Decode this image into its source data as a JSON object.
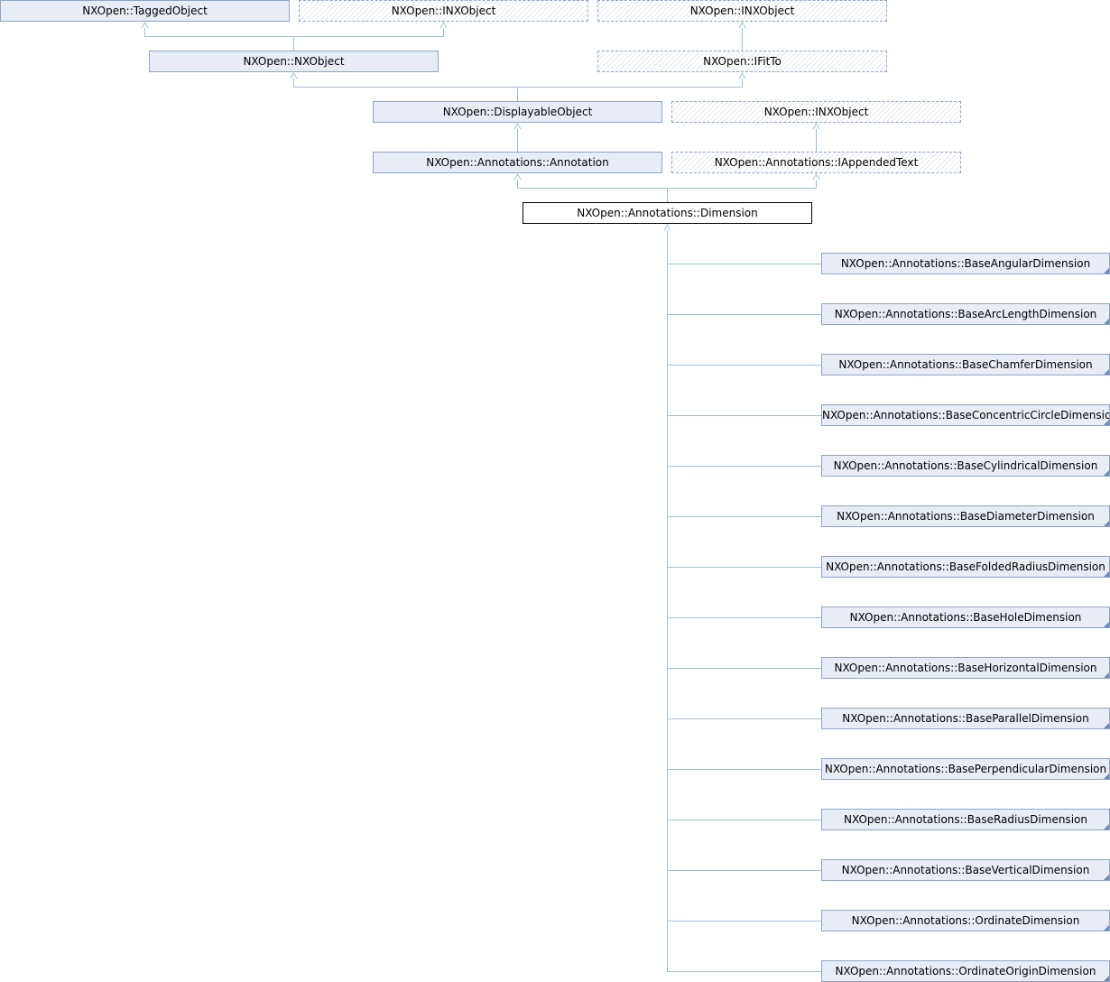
{
  "diagram": {
    "nodes": {
      "tagged_object": "NXOpen::TaggedObject",
      "inxobject_1": "NXOpen::INXObject",
      "inxobject_2": "NXOpen::INXObject",
      "nxobject": "NXOpen::NXObject",
      "ifitto": "NXOpen::IFitTo",
      "displayable_object": "NXOpen::DisplayableObject",
      "inxobject_3": "NXOpen::INXObject",
      "annotation": "NXOpen::Annotations::Annotation",
      "iappended_text": "NXOpen::Annotations::IAppendedText",
      "dimension": "NXOpen::Annotations::Dimension"
    },
    "subclasses": [
      "NXOpen::Annotations::BaseAngularDimension",
      "NXOpen::Annotations::BaseArcLengthDimension",
      "NXOpen::Annotations::BaseChamferDimension",
      "NXOpen::Annotations::BaseConcentricCircleDimension",
      "NXOpen::Annotations::BaseCylindricalDimension",
      "NXOpen::Annotations::BaseDiameterDimension",
      "NXOpen::Annotations::BaseFoldedRadiusDimension",
      "NXOpen::Annotations::BaseHoleDimension",
      "NXOpen::Annotations::BaseHorizontalDimension",
      "NXOpen::Annotations::BaseParallelDimension",
      "NXOpen::Annotations::BasePerpendicularDimension",
      "NXOpen::Annotations::BaseRadiusDimension",
      "NXOpen::Annotations::BaseVerticalDimension",
      "NXOpen::Annotations::OrdinateDimension",
      "NXOpen::Annotations::OrdinateOriginDimension"
    ],
    "colors": {
      "edge": "#9ac2dc",
      "node_fill": "#e8ecf6",
      "node_border": "#8ea3c9",
      "current_border": "#000000"
    }
  }
}
